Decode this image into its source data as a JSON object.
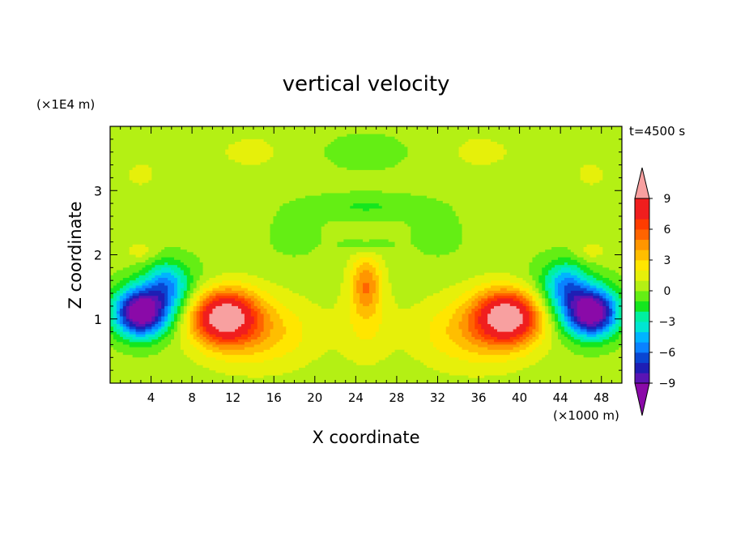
{
  "chart_data": {
    "type": "heatmap",
    "title": "vertical velocity",
    "xlabel": "X coordinate",
    "ylabel": "Z coordinate",
    "x_unit": "(×1000 m)",
    "y_unit": "(×1E4 m)",
    "time_label": "t=4500 s",
    "xlim": [
      0,
      50
    ],
    "ylim": [
      0,
      4
    ],
    "x_ticks": [
      "4",
      "8",
      "12",
      "16",
      "20",
      "24",
      "28",
      "32",
      "36",
      "40",
      "44",
      "48"
    ],
    "y_ticks": [
      "1",
      "2",
      "3"
    ],
    "colorbar_labels": [
      "9",
      "6",
      "3",
      "0",
      "-3",
      "-6",
      "-9"
    ],
    "colorbar_range": [
      -10,
      10
    ],
    "colorbar_colors": [
      "#8a0aa8",
      "#5a14b4",
      "#1e1eb4",
      "#0a46d2",
      "#0a82ff",
      "#00b4ff",
      "#00e6d2",
      "#00f0a0",
      "#14e61e",
      "#64ee14",
      "#b4f014",
      "#e6f00a",
      "#ffe600",
      "#ffbe00",
      "#ff9600",
      "#ff6400",
      "#ff3c00",
      "#f01e1e",
      "#f8a0a0"
    ],
    "features": [
      {
        "name": "updraft-left",
        "x": 10.5,
        "z": 1.05,
        "value": 9
      },
      {
        "name": "updraft-right",
        "x": 39.5,
        "z": 1.05,
        "value": 9
      },
      {
        "name": "downdraft-left",
        "x": 3,
        "z": 1.05,
        "value": -10
      },
      {
        "name": "downdraft-right",
        "x": 47,
        "z": 1.05,
        "value": -10
      },
      {
        "name": "central-column",
        "x": 25,
        "z": 1.5,
        "value": 4
      },
      {
        "name": "upper-band",
        "x": 25,
        "z": 2.7,
        "value": 0
      }
    ]
  }
}
